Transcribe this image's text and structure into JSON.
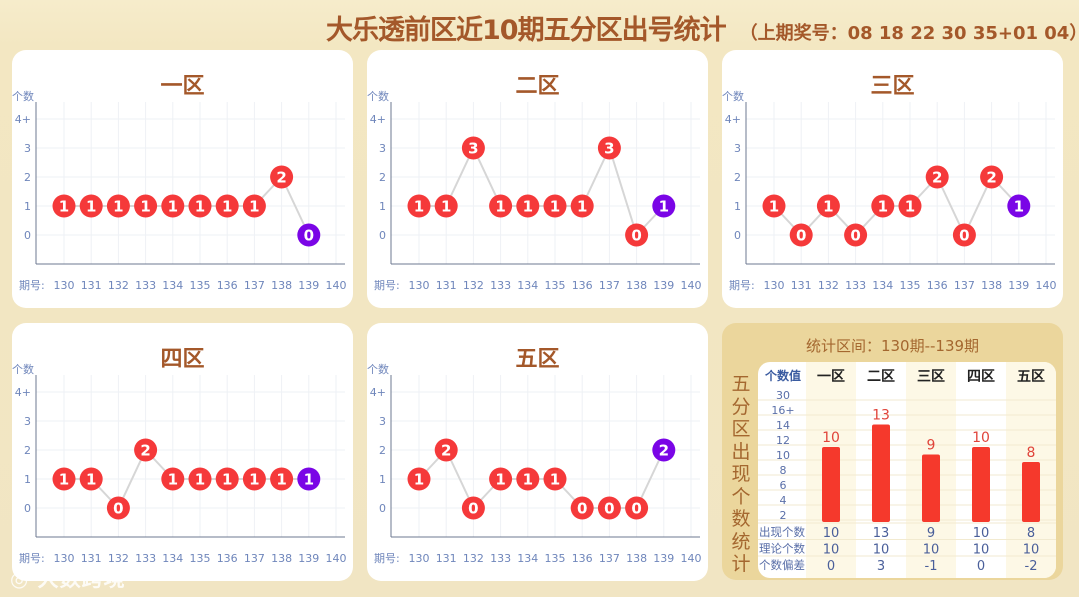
{
  "header": {
    "title": "大乐透前区近10期五分区出号统计",
    "last_draw": "（上期奖号：08 18 22 30 35+01 04）"
  },
  "axis": {
    "y_label": "个数",
    "x_label": "期号:",
    "y_ticks": [
      "0",
      "1",
      "2",
      "3",
      "4+"
    ],
    "periods": [
      "130",
      "131",
      "132",
      "133",
      "134",
      "135",
      "136",
      "137",
      "138",
      "139",
      "140"
    ]
  },
  "colors": {
    "ball": "#f5393a",
    "latest_ball": "#7a05e6",
    "title": "#a4582a",
    "axis_text": "#6f86bb"
  },
  "chart_data": [
    {
      "type": "line",
      "title": "一区",
      "x": [
        "130",
        "131",
        "132",
        "133",
        "134",
        "135",
        "136",
        "137",
        "138",
        "139"
      ],
      "values": [
        1,
        1,
        1,
        1,
        1,
        1,
        1,
        1,
        2,
        0
      ]
    },
    {
      "type": "line",
      "title": "二区",
      "x": [
        "130",
        "131",
        "132",
        "133",
        "134",
        "135",
        "136",
        "137",
        "138",
        "139"
      ],
      "values": [
        1,
        1,
        3,
        1,
        1,
        1,
        1,
        3,
        0,
        1
      ]
    },
    {
      "type": "line",
      "title": "三区",
      "x": [
        "130",
        "131",
        "132",
        "133",
        "134",
        "135",
        "136",
        "137",
        "138",
        "139"
      ],
      "values": [
        1,
        0,
        1,
        0,
        1,
        1,
        2,
        0,
        2,
        1
      ]
    },
    {
      "type": "line",
      "title": "四区",
      "x": [
        "130",
        "131",
        "132",
        "133",
        "134",
        "135",
        "136",
        "137",
        "138",
        "139"
      ],
      "values": [
        1,
        1,
        0,
        2,
        1,
        1,
        1,
        1,
        1,
        1
      ]
    },
    {
      "type": "line",
      "title": "五区",
      "x": [
        "130",
        "131",
        "132",
        "133",
        "134",
        "135",
        "136",
        "137",
        "138",
        "139"
      ],
      "values": [
        1,
        2,
        0,
        1,
        1,
        1,
        0,
        0,
        0,
        2
      ]
    },
    {
      "type": "bar",
      "title": "统计区间：130期--139期",
      "side_label": "五分区出现个数统计",
      "ylabel": "个数值",
      "y_ticks": [
        "2",
        "4",
        "6",
        "8",
        "10",
        "12",
        "14",
        "16+",
        "30"
      ],
      "categories": [
        "一区",
        "二区",
        "三区",
        "四区",
        "五区"
      ],
      "values": [
        10,
        13,
        9,
        10,
        8
      ],
      "rows": [
        {
          "label": "出现个数",
          "values": [
            "10",
            "13",
            "9",
            "10",
            "8"
          ]
        },
        {
          "label": "理论个数",
          "values": [
            "10",
            "10",
            "10",
            "10",
            "10"
          ]
        },
        {
          "label": "个数偏差",
          "values": [
            "0",
            "3",
            "-1",
            "0",
            "-2"
          ]
        }
      ]
    }
  ],
  "watermark": "大数跨境"
}
